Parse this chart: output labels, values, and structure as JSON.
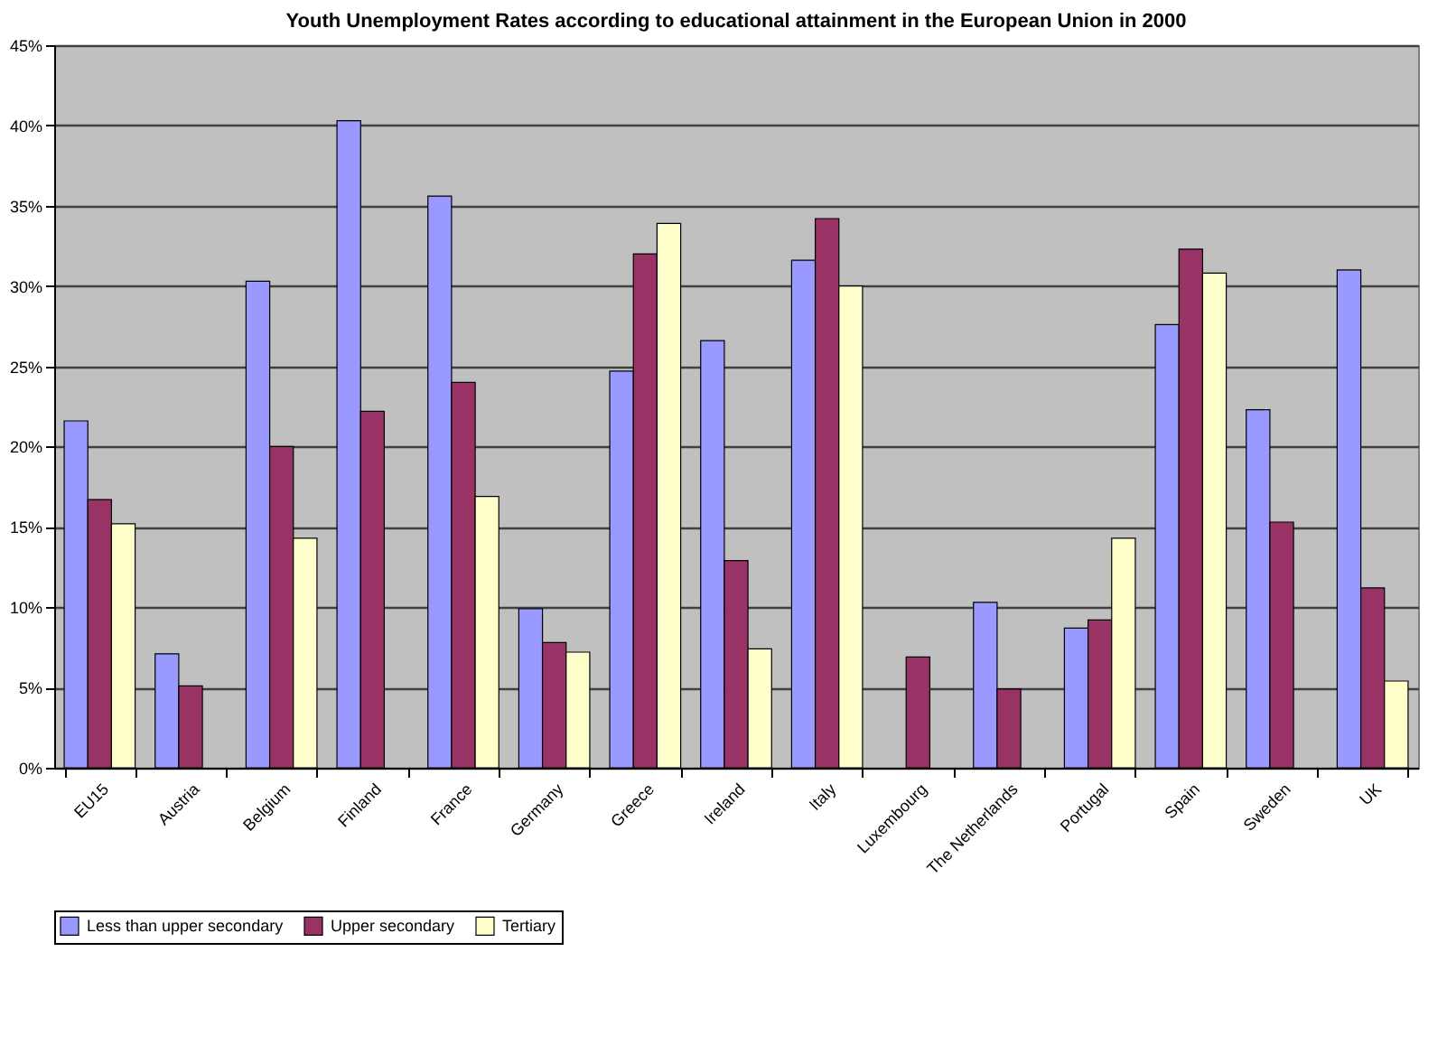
{
  "chart_data": {
    "type": "bar",
    "title": "Youth Unemployment Rates according to educational attainment in the European Union in 2000",
    "categories": [
      "EU15",
      "Austria",
      "Belgium",
      "Finland",
      "France",
      "Germany",
      "Greece",
      "Ireland",
      "Italy",
      "Luxembourg",
      "The Netherlands",
      "Portugal",
      "Spain",
      "Sweden",
      "UK"
    ],
    "series": [
      {
        "name": "Less than upper secondary",
        "color": "#9999ff",
        "values": [
          21.6,
          7.1,
          30.3,
          40.3,
          35.6,
          9.9,
          24.7,
          26.6,
          31.6,
          null,
          10.3,
          8.7,
          27.6,
          22.3,
          31.0
        ]
      },
      {
        "name": "Upper secondary",
        "color": "#993366",
        "values": [
          16.7,
          5.1,
          20.0,
          22.2,
          24.0,
          7.8,
          32.0,
          12.9,
          34.2,
          6.9,
          4.9,
          9.2,
          32.3,
          15.3,
          11.2
        ]
      },
      {
        "name": "Tertiary",
        "color": "#ffffcc",
        "values": [
          15.2,
          null,
          14.3,
          null,
          16.9,
          7.2,
          33.9,
          7.4,
          30.0,
          null,
          null,
          14.3,
          30.8,
          null,
          5.4
        ]
      }
    ],
    "ylim": [
      0,
      45
    ],
    "yticks": [
      {
        "value": 0,
        "label": "0%"
      },
      {
        "value": 5,
        "label": "5%"
      },
      {
        "value": 10,
        "label": "10%"
      },
      {
        "value": 15,
        "label": "15%"
      },
      {
        "value": 20,
        "label": "20%"
      },
      {
        "value": 25,
        "label": "25%"
      },
      {
        "value": 30,
        "label": "30%"
      },
      {
        "value": 35,
        "label": "35%"
      },
      {
        "value": 40,
        "label": "40%"
      },
      {
        "value": 45,
        "label": "45%"
      }
    ],
    "grid": "y",
    "legend": "bottom"
  }
}
